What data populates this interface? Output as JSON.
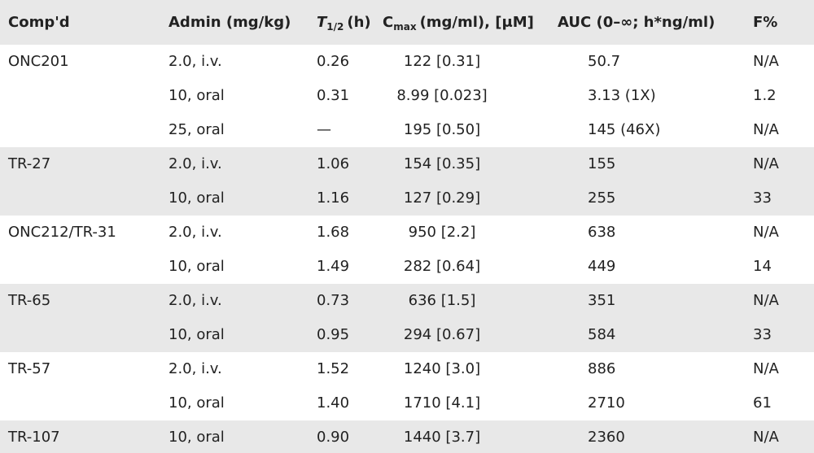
{
  "table": {
    "header": {
      "compound": "Comp'd",
      "admin": "Admin (mg/kg)",
      "thalf": {
        "main": "T",
        "sub": "1/2",
        "rest": "(h)"
      },
      "cmax": {
        "main": "C",
        "sub": "max",
        "rest": "(mg/ml), [μM]"
      },
      "auc": "AUC (0–∞; h*ng/ml)",
      "f": "F%"
    },
    "groups": [
      {
        "compound": "ONC201",
        "rows": [
          [
            "2.0, i.v.",
            "0.26",
            "122 [0.31]",
            "50.7",
            "N/A"
          ],
          [
            "10, oral",
            "0.31",
            "8.99 [0.023]",
            "3.13 (1X)",
            "1.2"
          ],
          [
            "25, oral",
            "—",
            "195 [0.50]",
            "145 (46X)",
            "N/A"
          ]
        ]
      },
      {
        "compound": "TR-27",
        "rows": [
          [
            "2.0, i.v.",
            "1.06",
            "154 [0.35]",
            "155",
            "N/A"
          ],
          [
            "10, oral",
            "1.16",
            "127 [0.29]",
            "255",
            "33"
          ]
        ]
      },
      {
        "compound": "ONC212/TR-31",
        "rows": [
          [
            "2.0, i.v.",
            "1.68",
            "950 [2.2]",
            "638",
            "N/A"
          ],
          [
            "10, oral",
            "1.49",
            "282 [0.64]",
            "449",
            "14"
          ]
        ]
      },
      {
        "compound": "TR-65",
        "rows": [
          [
            "2.0, i.v.",
            "0.73",
            "636 [1.5]",
            "351",
            "N/A"
          ],
          [
            "10, oral",
            "0.95",
            "294 [0.67]",
            "584",
            "33"
          ]
        ]
      },
      {
        "compound": "TR-57",
        "rows": [
          [
            "2.0, i.v.",
            "1.52",
            "1240 [3.0]",
            "886",
            "N/A"
          ],
          [
            "10, oral",
            "1.40",
            "1710 [4.1]",
            "2710",
            "61"
          ]
        ]
      },
      {
        "compound": "TR-107",
        "rows": [
          [
            "10, oral",
            "0.90",
            "1440 [3.7]",
            "2360",
            "N/A"
          ]
        ]
      }
    ]
  }
}
